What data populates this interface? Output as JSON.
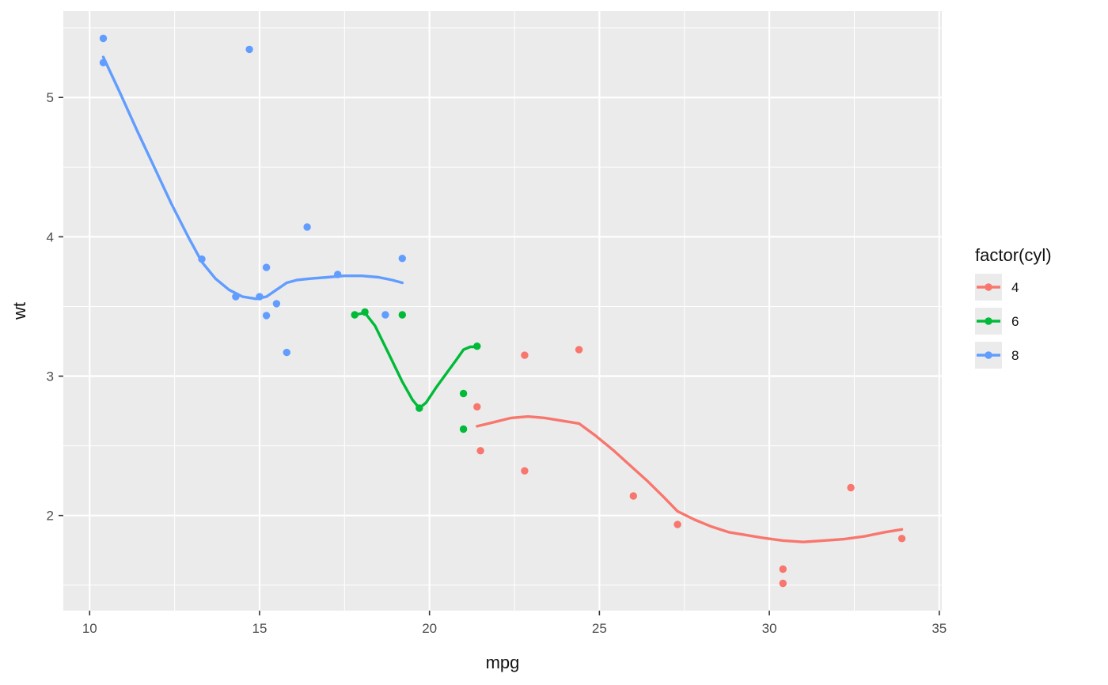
{
  "chart_data": {
    "type": "scatter",
    "title": "",
    "xlabel": "mpg",
    "ylabel": "wt",
    "xlim": [
      9.225,
      35.075
    ],
    "ylim": [
      1.317,
      5.62
    ],
    "x_ticks": [
      10,
      15,
      20,
      25,
      30,
      35
    ],
    "y_ticks": [
      2,
      3,
      4,
      5
    ],
    "x_minor": [
      12.5,
      17.5,
      22.5,
      27.5,
      32.5
    ],
    "y_minor": [
      1.5,
      2.5,
      3.5,
      4.5,
      5.5
    ],
    "grid": true,
    "legend": {
      "title": "factor(cyl)",
      "position": "right",
      "entries": [
        "4",
        "6",
        "8"
      ]
    },
    "series": [
      {
        "name": "4",
        "color": "#F8766D",
        "points": [
          [
            22.8,
            2.32
          ],
          [
            24.4,
            3.19
          ],
          [
            22.8,
            3.15
          ],
          [
            32.4,
            2.2
          ],
          [
            30.4,
            1.615
          ],
          [
            33.9,
            1.835
          ],
          [
            21.5,
            2.465
          ],
          [
            27.3,
            1.935
          ],
          [
            26.0,
            2.14
          ],
          [
            30.4,
            1.513
          ],
          [
            21.4,
            2.78
          ]
        ],
        "smooth": [
          [
            21.4,
            2.64
          ],
          [
            21.9,
            2.67
          ],
          [
            22.4,
            2.7
          ],
          [
            22.9,
            2.71
          ],
          [
            23.4,
            2.7
          ],
          [
            23.9,
            2.68
          ],
          [
            24.4,
            2.66
          ],
          [
            24.9,
            2.57
          ],
          [
            25.4,
            2.47
          ],
          [
            25.9,
            2.36
          ],
          [
            26.4,
            2.25
          ],
          [
            26.9,
            2.13
          ],
          [
            27.3,
            2.03
          ],
          [
            27.8,
            1.97
          ],
          [
            28.3,
            1.92
          ],
          [
            28.8,
            1.88
          ],
          [
            29.3,
            1.86
          ],
          [
            29.8,
            1.84
          ],
          [
            30.4,
            1.82
          ],
          [
            31.0,
            1.81
          ],
          [
            31.6,
            1.82
          ],
          [
            32.2,
            1.83
          ],
          [
            32.8,
            1.85
          ],
          [
            33.4,
            1.88
          ],
          [
            33.9,
            1.9
          ]
        ]
      },
      {
        "name": "6",
        "color": "#00BA38",
        "points": [
          [
            21.0,
            2.62
          ],
          [
            21.0,
            2.875
          ],
          [
            21.4,
            3.215
          ],
          [
            18.1,
            3.46
          ],
          [
            19.2,
            3.44
          ],
          [
            17.8,
            3.44
          ],
          [
            19.7,
            2.77
          ]
        ],
        "smooth": [
          [
            17.8,
            3.44
          ],
          [
            18.1,
            3.455
          ],
          [
            18.4,
            3.36
          ],
          [
            18.8,
            3.16
          ],
          [
            19.2,
            2.96
          ],
          [
            19.5,
            2.83
          ],
          [
            19.7,
            2.77
          ],
          [
            19.9,
            2.81
          ],
          [
            20.2,
            2.92
          ],
          [
            20.5,
            3.02
          ],
          [
            20.8,
            3.12
          ],
          [
            21.0,
            3.19
          ],
          [
            21.2,
            3.21
          ],
          [
            21.4,
            3.21
          ]
        ]
      },
      {
        "name": "8",
        "color": "#619CFF",
        "points": [
          [
            18.7,
            3.44
          ],
          [
            14.3,
            3.57
          ],
          [
            16.4,
            4.07
          ],
          [
            17.3,
            3.73
          ],
          [
            15.2,
            3.78
          ],
          [
            10.4,
            5.25
          ],
          [
            10.4,
            5.424
          ],
          [
            14.7,
            5.345
          ],
          [
            15.5,
            3.52
          ],
          [
            15.2,
            3.435
          ],
          [
            13.3,
            3.84
          ],
          [
            19.2,
            3.845
          ],
          [
            15.8,
            3.17
          ],
          [
            15.0,
            3.57
          ]
        ],
        "smooth": [
          [
            10.4,
            5.29
          ],
          [
            10.9,
            5.03
          ],
          [
            11.4,
            4.76
          ],
          [
            11.9,
            4.5
          ],
          [
            12.4,
            4.24
          ],
          [
            12.9,
            4.0
          ],
          [
            13.3,
            3.82
          ],
          [
            13.7,
            3.7
          ],
          [
            14.1,
            3.62
          ],
          [
            14.5,
            3.57
          ],
          [
            14.9,
            3.555
          ],
          [
            15.2,
            3.57
          ],
          [
            15.5,
            3.62
          ],
          [
            15.8,
            3.67
          ],
          [
            16.1,
            3.69
          ],
          [
            16.5,
            3.7
          ],
          [
            17.0,
            3.71
          ],
          [
            17.5,
            3.72
          ],
          [
            18.0,
            3.72
          ],
          [
            18.5,
            3.71
          ],
          [
            18.9,
            3.69
          ],
          [
            19.2,
            3.67
          ]
        ]
      }
    ]
  },
  "theme": {
    "panel_background": "#EBEBEB",
    "grid_major_color": "#FFFFFF",
    "grid_minor_color": "#FFFFFF",
    "tick_mark_color": "#333333",
    "tick_label_color": "#4D4D4D",
    "axis_title_color": "#111111",
    "legend_key_fill": "#EBEBEB",
    "legend_text_color": "#111111"
  }
}
